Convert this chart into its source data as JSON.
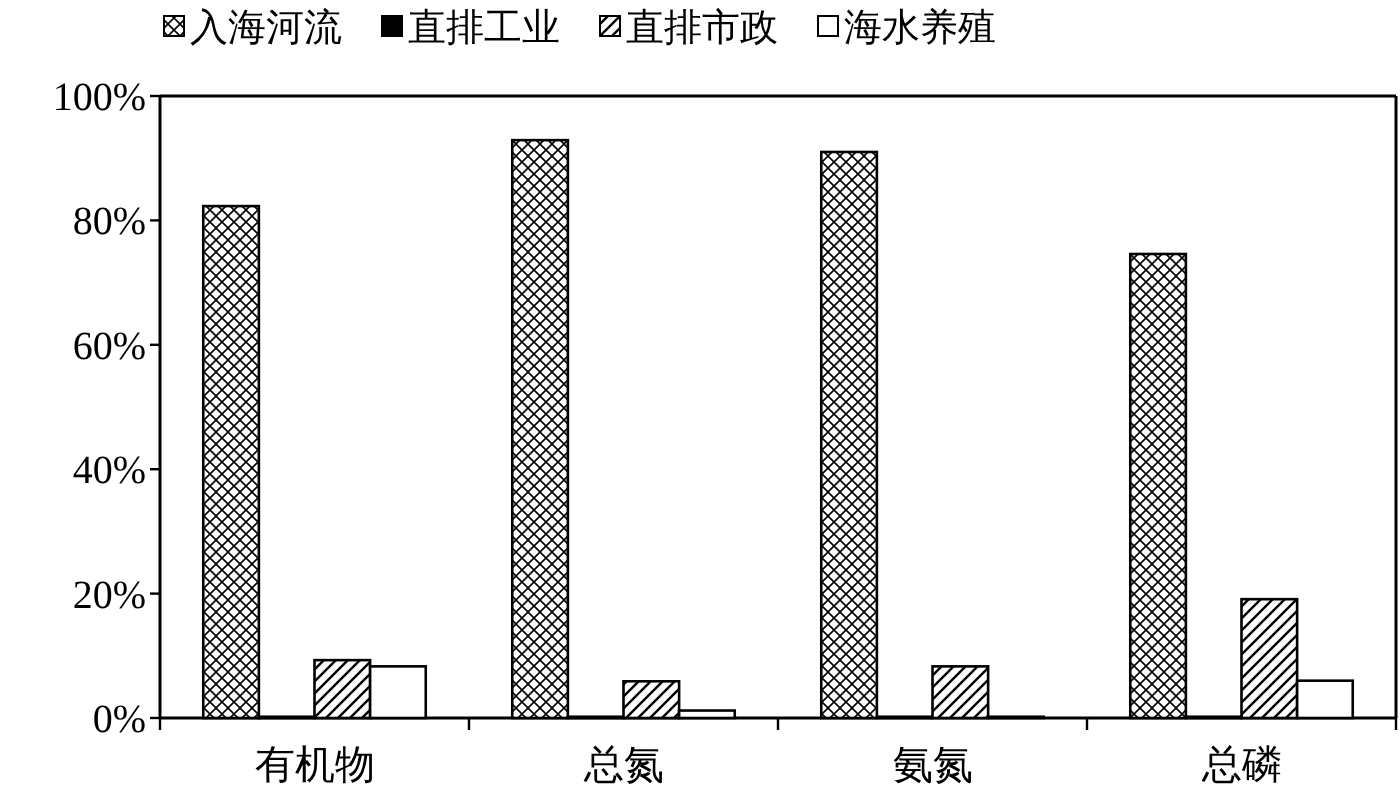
{
  "chart_data": {
    "type": "bar",
    "categories": [
      "有机物",
      "总氮",
      "氨氮",
      "总磷"
    ],
    "series": [
      {
        "name": "入海河流",
        "color": "#000000",
        "values": [
          82.3,
          92.9,
          91,
          74.6
        ]
      },
      {
        "name": "直排工业",
        "color": "#000000",
        "values": [
          0.2,
          0.2,
          0.2,
          0.2
        ]
      },
      {
        "name": "直排市政",
        "color": "#000000",
        "values": [
          9.3,
          5.9,
          8.3,
          19.1
        ]
      },
      {
        "name": "海水养殖",
        "color": "#ffffff",
        "values": [
          8.3,
          1.2,
          0.2,
          6
        ]
      }
    ],
    "ylim": [
      0,
      100
    ],
    "yticks": [
      {
        "value": 0,
        "label": "0%"
      },
      {
        "value": 20,
        "label": "20%"
      },
      {
        "value": 40,
        "label": "40%"
      },
      {
        "value": 60,
        "label": "60%"
      },
      {
        "value": 80,
        "label": "80%"
      },
      {
        "value": 100,
        "label": "100%"
      }
    ],
    "legend": "top",
    "grid": false
  }
}
